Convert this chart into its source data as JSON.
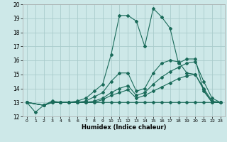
{
  "xlabel": "Humidex (Indice chaleur)",
  "xlim": [
    -0.5,
    23.5
  ],
  "ylim": [
    12,
    20
  ],
  "background_color": "#cde8e8",
  "grid_color": "#aacccc",
  "line_color": "#1a6b5a",
  "lines": [
    {
      "x": [
        0,
        1,
        2,
        3,
        4,
        5,
        6,
        7,
        8,
        9,
        10,
        11,
        12,
        13,
        14,
        15,
        16,
        17,
        18,
        19,
        20,
        21,
        22,
        23
      ],
      "y": [
        13,
        12.3,
        12.8,
        13.0,
        13.0,
        13.0,
        13.0,
        13.0,
        13.0,
        13.0,
        13.0,
        13.0,
        13.0,
        13.0,
        13.0,
        13.0,
        13.0,
        13.0,
        13.0,
        13.0,
        13.0,
        13.0,
        13.0,
        13.0
      ]
    },
    {
      "x": [
        0,
        2,
        3,
        4,
        5,
        6,
        7,
        8,
        9,
        10,
        11,
        12,
        13,
        14,
        15,
        16,
        17,
        18,
        19,
        20,
        21,
        22,
        23
      ],
      "y": [
        13,
        12.8,
        13.1,
        13.0,
        13.0,
        13.1,
        13.3,
        13.8,
        14.3,
        16.4,
        19.2,
        19.2,
        18.8,
        17.0,
        19.7,
        19.1,
        18.3,
        15.8,
        16.1,
        16.1,
        13.8,
        13.0,
        13.0
      ]
    },
    {
      "x": [
        0,
        2,
        3,
        4,
        5,
        6,
        7,
        8,
        9,
        10,
        11,
        12,
        13,
        14,
        15,
        16,
        17,
        18,
        19,
        20,
        21,
        22,
        23
      ],
      "y": [
        13,
        12.8,
        13.0,
        13.0,
        13.0,
        13.0,
        13.1,
        13.4,
        13.7,
        14.5,
        15.1,
        15.1,
        13.8,
        14.0,
        15.1,
        15.8,
        16.0,
        15.9,
        15.1,
        15.0,
        13.9,
        13.0,
        13.0
      ]
    },
    {
      "x": [
        0,
        2,
        3,
        4,
        5,
        6,
        7,
        8,
        9,
        10,
        11,
        12,
        13,
        14,
        15,
        16,
        17,
        18,
        19,
        20,
        21,
        22,
        23
      ],
      "y": [
        13,
        12.8,
        13.0,
        13.0,
        13.0,
        13.0,
        13.0,
        13.1,
        13.3,
        13.7,
        14.0,
        14.2,
        13.5,
        13.7,
        14.3,
        14.8,
        15.2,
        15.5,
        15.8,
        15.9,
        14.5,
        13.3,
        13.0
      ]
    },
    {
      "x": [
        0,
        2,
        3,
        4,
        5,
        6,
        7,
        8,
        9,
        10,
        11,
        12,
        13,
        14,
        15,
        16,
        17,
        18,
        19,
        20,
        21,
        22,
        23
      ],
      "y": [
        13,
        12.8,
        13.0,
        13.0,
        13.0,
        13.0,
        13.0,
        13.0,
        13.2,
        13.5,
        13.7,
        13.9,
        13.3,
        13.5,
        13.8,
        14.1,
        14.4,
        14.7,
        14.9,
        15.0,
        14.0,
        13.1,
        13.0
      ]
    }
  ],
  "xticks": [
    0,
    1,
    2,
    3,
    4,
    5,
    6,
    7,
    8,
    9,
    10,
    11,
    12,
    13,
    14,
    15,
    16,
    17,
    18,
    19,
    20,
    21,
    22,
    23
  ],
  "yticks": [
    12,
    13,
    14,
    15,
    16,
    17,
    18,
    19,
    20
  ],
  "marker": "D",
  "markersize": 2.0,
  "linewidth": 0.8
}
